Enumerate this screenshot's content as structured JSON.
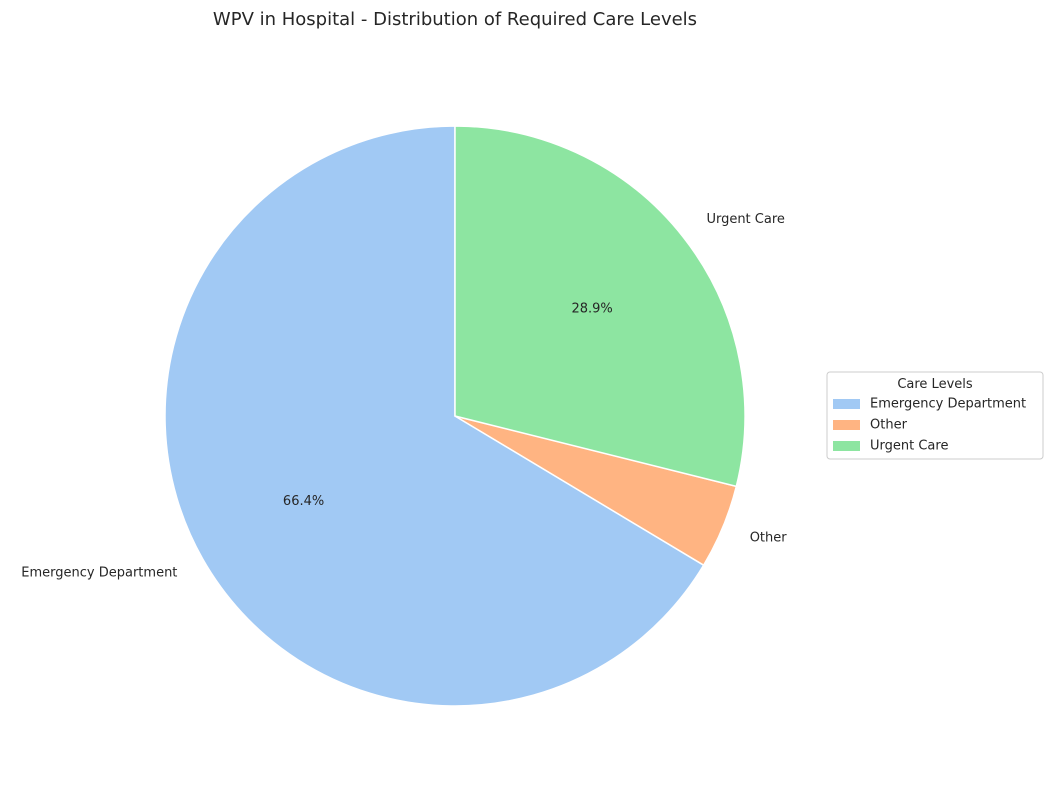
{
  "chart_data": {
    "type": "pie",
    "title": "WPV in Hospital - Distribution of Required Care Levels",
    "start_angle_deg": 90,
    "direction": "counterclockwise",
    "slices": [
      {
        "label": "Emergency Department",
        "value": 66.4,
        "pct_label": "66.4%",
        "color": "#a1c9f4"
      },
      {
        "label": "Other",
        "value": 4.7,
        "pct_label": "",
        "color": "#ffb482"
      },
      {
        "label": "Urgent Care",
        "value": 28.9,
        "pct_label": "28.9%",
        "color": "#8de5a1"
      }
    ],
    "legend": {
      "title": "Care Levels",
      "placement": "center-right",
      "entries": [
        "Emergency Department",
        "Other",
        "Urgent Care"
      ]
    }
  }
}
